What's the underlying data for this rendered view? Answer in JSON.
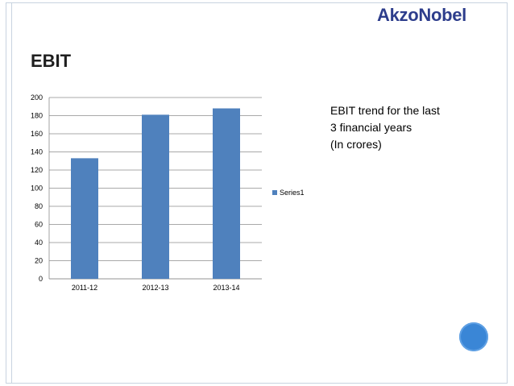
{
  "brand": {
    "logo_text": "AkzoNobel"
  },
  "slide": {
    "title": "EBIT",
    "note_lines": [
      "EBIT trend for the last",
      "3 financial years",
      "(In crores)"
    ]
  },
  "colors": {
    "bar": "#4f81bd",
    "logo": "#2d3d8c",
    "accent_circle": "#3a86d6"
  },
  "chart_data": {
    "type": "bar",
    "categories": [
      "2011-12",
      "2012-13",
      "2013-14"
    ],
    "series": [
      {
        "name": "Series1",
        "values": [
          133,
          181,
          188
        ]
      }
    ],
    "ylim": [
      0,
      200
    ],
    "yticks": [
      0,
      20,
      40,
      60,
      80,
      100,
      120,
      140,
      160,
      180,
      200
    ],
    "grid": true,
    "legend_position": "right"
  }
}
